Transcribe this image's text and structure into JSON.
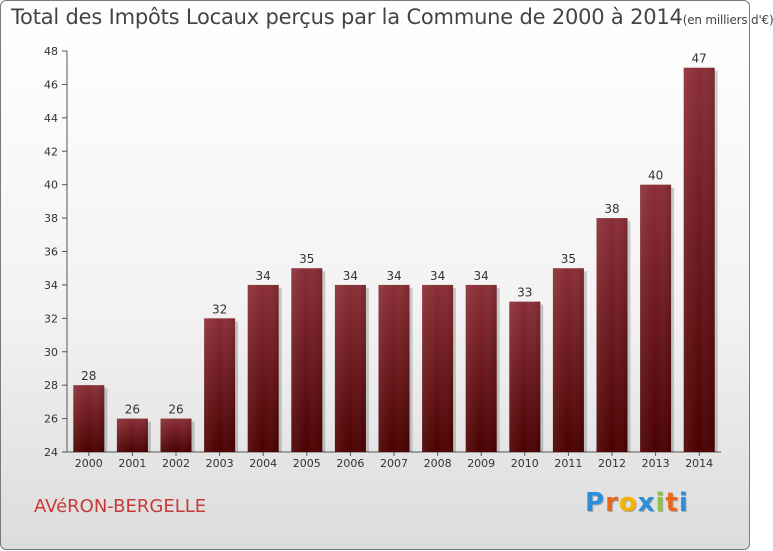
{
  "title_main": "Total des Impôts Locaux perçus par la Commune de 2000 à 2014",
  "title_unit": "(en milliers d'€)",
  "commune": "AVéRON-BERGELLE",
  "logo": {
    "letters": [
      "P",
      "r",
      "o",
      "x",
      "i",
      "t",
      "i"
    ],
    "colors": [
      "#2a8fd8",
      "#e8661e",
      "#f0b400",
      "#2a8fd8",
      "#8cc63f",
      "#e8661e",
      "#2a8fd8"
    ]
  },
  "colors": {
    "bar_top": "#8a2e36",
    "bar_bottom": "#4a0000",
    "title": "#444444",
    "commune": "#c83a3a"
  },
  "chart_data": {
    "type": "bar",
    "title": "Total des Impôts Locaux perçus par la Commune de 2000 à 2014 (en milliers d'€)",
    "categories": [
      "2000",
      "2001",
      "2002",
      "2003",
      "2004",
      "2005",
      "2006",
      "2007",
      "2008",
      "2009",
      "2010",
      "2011",
      "2012",
      "2013",
      "2014"
    ],
    "values": [
      28,
      26,
      26,
      32,
      34,
      35,
      34,
      34,
      34,
      34,
      33,
      35,
      38,
      40,
      47
    ],
    "ylim": [
      24,
      48
    ],
    "yticks": [
      24,
      26,
      28,
      30,
      32,
      34,
      36,
      38,
      40,
      42,
      44,
      46,
      48
    ],
    "xlabel": "",
    "ylabel": "",
    "grid": false
  }
}
